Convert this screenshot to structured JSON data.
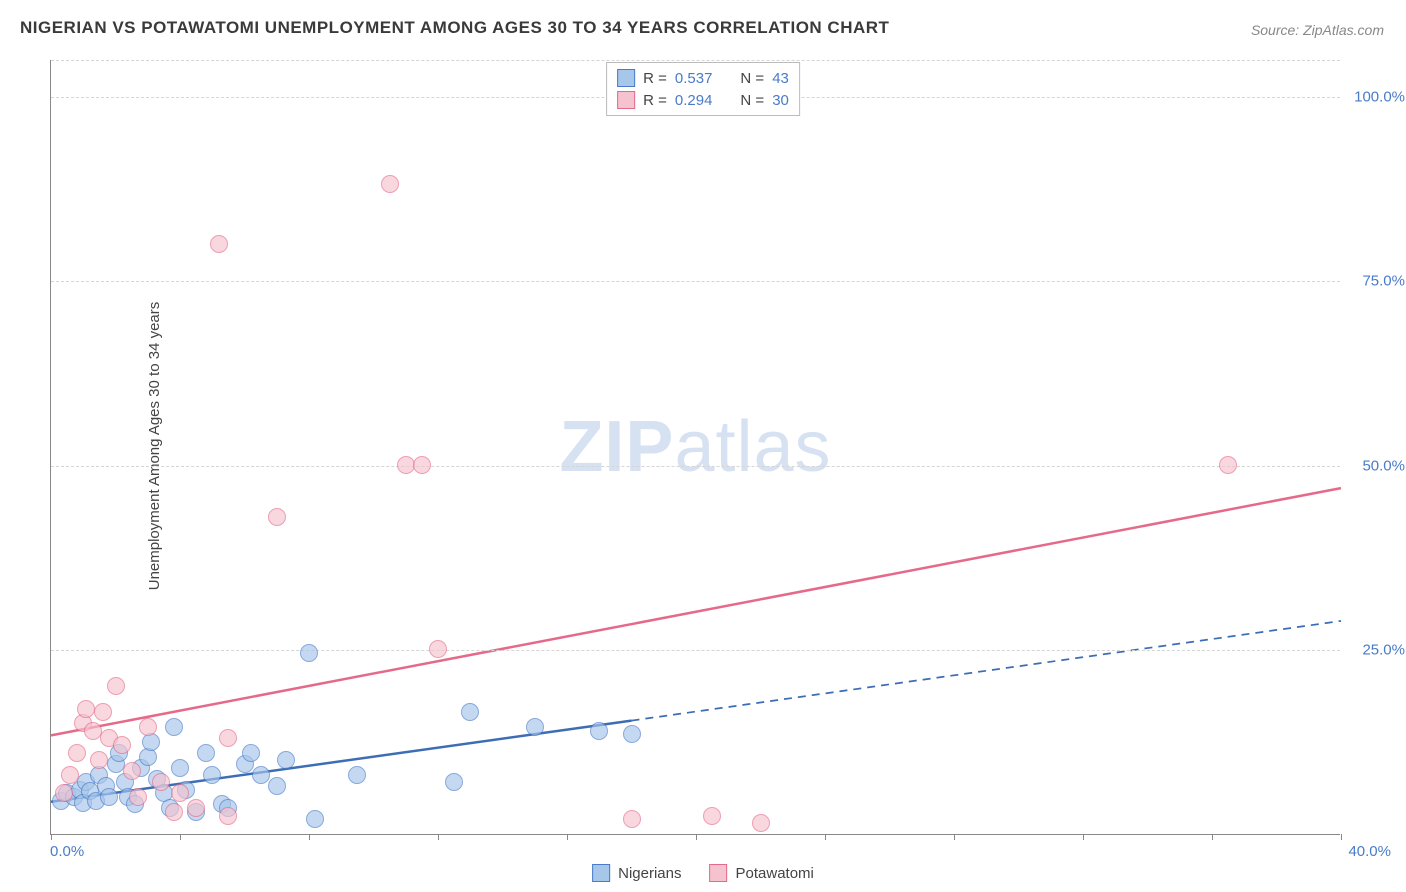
{
  "title": "NIGERIAN VS POTAWATOMI UNEMPLOYMENT AMONG AGES 30 TO 34 YEARS CORRELATION CHART",
  "source": "Source: ZipAtlas.com",
  "watermark_bold": "ZIP",
  "watermark_light": "atlas",
  "y_axis_label": "Unemployment Among Ages 30 to 34 years",
  "colors": {
    "background": "#ffffff",
    "title": "#3a3a3a",
    "source": "#888888",
    "grid": "#d5d5d5",
    "axis": "#888888",
    "tick_label": "#4a7bc8",
    "blue_fill": "#a6c6ea",
    "blue_stroke": "#4a7bc8",
    "pink_fill": "#f5c3cf",
    "pink_stroke": "#e56a8a",
    "blue_line": "#3d6db5",
    "pink_line": "#e56a8a",
    "watermark": "#4a7bc8"
  },
  "chart": {
    "type": "scatter",
    "xlim": [
      0,
      40
    ],
    "ylim": [
      0,
      105
    ],
    "x_ticks": [
      0,
      4,
      8,
      12,
      16,
      20,
      24,
      28,
      32,
      36,
      40
    ],
    "y_ticks": [
      25,
      50,
      75,
      100
    ],
    "x_tick_labels": {
      "0": "0.0%",
      "40": "40.0%"
    },
    "y_tick_labels": {
      "25": "25.0%",
      "50": "50.0%",
      "75": "75.0%",
      "100": "100.0%"
    },
    "marker_radius": 9,
    "marker_opacity": 0.65,
    "line_width": 2.5,
    "series": [
      {
        "name": "Nigerians",
        "color_key": "blue",
        "R": "0.537",
        "N": "43",
        "trend": {
          "x1": 0,
          "y1": 4.5,
          "x2": 18,
          "y2": 15.5,
          "dash_x2": 40,
          "dash_y2": 29
        },
        "points": [
          [
            0.3,
            4.5
          ],
          [
            0.5,
            5.5
          ],
          [
            0.7,
            5.0
          ],
          [
            0.9,
            6.0
          ],
          [
            1.0,
            4.2
          ],
          [
            1.1,
            7.0
          ],
          [
            1.2,
            5.8
          ],
          [
            1.4,
            4.5
          ],
          [
            1.5,
            8.0
          ],
          [
            1.7,
            6.5
          ],
          [
            1.8,
            5.0
          ],
          [
            2.0,
            9.5
          ],
          [
            2.1,
            11.0
          ],
          [
            2.3,
            7.0
          ],
          [
            2.4,
            5.0
          ],
          [
            2.6,
            4.0
          ],
          [
            2.8,
            9.0
          ],
          [
            3.0,
            10.5
          ],
          [
            3.1,
            12.5
          ],
          [
            3.3,
            7.5
          ],
          [
            3.5,
            5.5
          ],
          [
            3.7,
            3.5
          ],
          [
            3.8,
            14.5
          ],
          [
            4.0,
            9.0
          ],
          [
            4.2,
            6.0
          ],
          [
            4.5,
            3.0
          ],
          [
            4.8,
            11.0
          ],
          [
            5.0,
            8.0
          ],
          [
            5.3,
            4.0
          ],
          [
            5.5,
            3.5
          ],
          [
            6.0,
            9.5
          ],
          [
            6.2,
            11.0
          ],
          [
            6.5,
            8.0
          ],
          [
            7.0,
            6.5
          ],
          [
            7.3,
            10.0
          ],
          [
            8.0,
            24.5
          ],
          [
            8.2,
            2.0
          ],
          [
            9.5,
            8.0
          ],
          [
            12.5,
            7.0
          ],
          [
            13.0,
            16.5
          ],
          [
            15.0,
            14.5
          ],
          [
            17.0,
            14.0
          ],
          [
            18.0,
            13.5
          ]
        ]
      },
      {
        "name": "Potawatomi",
        "color_key": "pink",
        "R": "0.294",
        "N": "30",
        "trend": {
          "x1": 0,
          "y1": 13.5,
          "x2": 40,
          "y2": 47
        },
        "points": [
          [
            0.4,
            5.5
          ],
          [
            0.6,
            8.0
          ],
          [
            0.8,
            11.0
          ],
          [
            1.0,
            15.0
          ],
          [
            1.1,
            17.0
          ],
          [
            1.3,
            14.0
          ],
          [
            1.5,
            10.0
          ],
          [
            1.6,
            16.5
          ],
          [
            1.8,
            13.0
          ],
          [
            2.0,
            20.0
          ],
          [
            2.2,
            12.0
          ],
          [
            2.5,
            8.5
          ],
          [
            2.7,
            5.0
          ],
          [
            3.0,
            14.5
          ],
          [
            3.4,
            7.0
          ],
          [
            3.8,
            3.0
          ],
          [
            4.0,
            5.5
          ],
          [
            4.5,
            3.5
          ],
          [
            5.2,
            80.0
          ],
          [
            5.5,
            13.0
          ],
          [
            7.0,
            43.0
          ],
          [
            10.5,
            88.0
          ],
          [
            11.0,
            50.0
          ],
          [
            11.5,
            50.0
          ],
          [
            12.0,
            25.0
          ],
          [
            18.0,
            2.0
          ],
          [
            20.5,
            2.5
          ],
          [
            22.0,
            1.5
          ],
          [
            36.5,
            50.0
          ],
          [
            5.5,
            2.5
          ]
        ]
      }
    ]
  },
  "legend_top": [
    {
      "swatch": "blue",
      "r_label": "R =",
      "r_val": "0.537",
      "n_label": "N =",
      "n_val": "43"
    },
    {
      "swatch": "pink",
      "r_label": "R =",
      "r_val": "0.294",
      "n_label": "N =",
      "n_val": "30"
    }
  ],
  "legend_bottom": [
    {
      "swatch": "blue",
      "label": "Nigerians"
    },
    {
      "swatch": "pink",
      "label": "Potawatomi"
    }
  ]
}
